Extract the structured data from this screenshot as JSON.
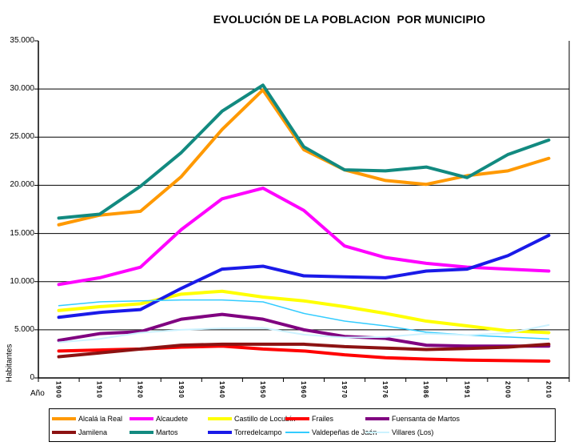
{
  "title": "EVOLUCIÓN DE LA POBLACION  POR MUNICIPIO",
  "axes": {
    "y_label": "Habitantes",
    "x_label": "Año",
    "y_ticks": [
      {
        "label": "35.000",
        "value": 35000,
        "grid": false
      },
      {
        "label": "30.000",
        "value": 30000,
        "grid": true
      },
      {
        "label": "25.000",
        "value": 25000,
        "grid": true
      },
      {
        "label": "20.000",
        "value": 20000,
        "grid": true
      },
      {
        "label": "15.000",
        "value": 15000,
        "grid": true
      },
      {
        "label": "10.000",
        "value": 10000,
        "grid": true
      },
      {
        "label": "5.000",
        "value": 5000,
        "grid": true
      },
      {
        "label": "0",
        "value": 0,
        "grid": false
      }
    ]
  },
  "chart_data": {
    "type": "line",
    "title": "EVOLUCIÓN DE LA POBLACION  POR MUNICIPIO",
    "xlabel": "Año",
    "ylabel": "Habitantes",
    "ylim": [
      0,
      35000
    ],
    "grid": true,
    "legend_position": "bottom",
    "x": [
      "1900",
      "1910",
      "1920",
      "1930",
      "1940",
      "1950",
      "1960",
      "1970",
      "1976",
      "1986",
      "1991",
      "2000",
      "2010"
    ],
    "series": [
      {
        "name": "Alcalá la Real",
        "color": "#FF9900",
        "stroke_width": 4,
        "values": [
          15900,
          16900,
          17300,
          20900,
          25800,
          29900,
          23700,
          21600,
          20500,
          20100,
          21000,
          21500,
          22800
        ]
      },
      {
        "name": "Alcaudete",
        "color": "#FF00FF",
        "stroke_width": 4,
        "values": [
          9700,
          10400,
          11500,
          15400,
          18600,
          19700,
          17400,
          13700,
          12500,
          11900,
          11500,
          11300,
          11100
        ]
      },
      {
        "name": "Castillo de Locubín",
        "color": "#FFFF00",
        "stroke_width": 4,
        "values": [
          7000,
          7400,
          7700,
          8700,
          9000,
          8400,
          8000,
          7400,
          6700,
          5900,
          5400,
          4900,
          4700
        ]
      },
      {
        "name": "Frailes",
        "color": "#FF0000",
        "stroke_width": 4,
        "values": [
          2800,
          2900,
          3000,
          3200,
          3300,
          3000,
          2800,
          2400,
          2100,
          1950,
          1850,
          1800,
          1750
        ]
      },
      {
        "name": "Fuensanta de Martos",
        "color": "#800080",
        "stroke_width": 4,
        "values": [
          3900,
          4600,
          4800,
          6100,
          6600,
          6100,
          5000,
          4300,
          4100,
          3400,
          3300,
          3300,
          3300
        ]
      },
      {
        "name": "Jamilena",
        "color": "#8C1212",
        "stroke_width": 4,
        "values": [
          2200,
          2600,
          3000,
          3400,
          3500,
          3500,
          3500,
          3250,
          3100,
          2950,
          3050,
          3200,
          3500
        ]
      },
      {
        "name": "Martos",
        "color": "#128A80",
        "stroke_width": 4,
        "values": [
          16600,
          17000,
          19900,
          23400,
          27700,
          30400,
          24000,
          21600,
          21500,
          21900,
          20800,
          23200,
          24700
        ]
      },
      {
        "name": "Torredelcampo",
        "color": "#1A1AE8",
        "stroke_width": 4,
        "values": [
          6300,
          6800,
          7100,
          9300,
          11300,
          11600,
          10600,
          10500,
          10400,
          11100,
          11300,
          12700,
          14800
        ]
      },
      {
        "name": "Valdepeñas de Jaén",
        "color": "#33CCFF",
        "stroke_width": 1.5,
        "values": [
          7500,
          7900,
          8000,
          8100,
          8100,
          7900,
          6700,
          5900,
          5400,
          4750,
          4450,
          4250,
          4050
        ]
      },
      {
        "name": "Villares (Los)",
        "color": "#CCF2FF",
        "stroke_width": 2,
        "values": [
          3700,
          4050,
          4700,
          5000,
          5150,
          5200,
          4500,
          4200,
          4250,
          4600,
          4450,
          4650,
          5500
        ]
      }
    ]
  }
}
